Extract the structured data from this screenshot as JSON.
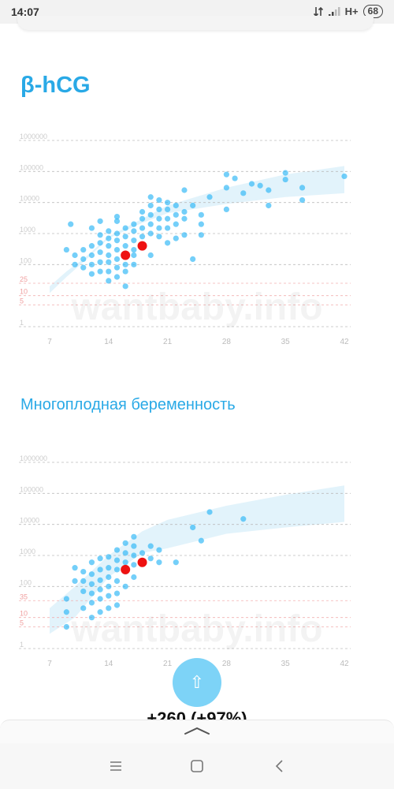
{
  "status_bar": {
    "time": "14:07",
    "network": "H+",
    "battery": "68"
  },
  "page_title": "β-hCG",
  "section_subtitle": "Многоплодная беременность",
  "watermark": "wantbaby.info",
  "scroll_top_icon": "⇧",
  "partial_text": "+260 (+97%)",
  "colors": {
    "accent": "#29a9e6",
    "point": "#29b6f6",
    "highlight": "#ee1111",
    "band": "#dff2fb",
    "grid": "#bdbdbd",
    "grid_red": "#f2b0b0"
  },
  "chart_data": [
    {
      "type": "scatter",
      "title": "β-hCG",
      "xlim": [
        7,
        42
      ],
      "x_ticks": [
        7,
        14,
        21,
        28,
        35,
        42
      ],
      "y_scale": "log",
      "ylim": [
        1,
        1000000
      ],
      "y_ticks": [
        {
          "value": 1,
          "label": "1",
          "red": false
        },
        {
          "value": 5,
          "label": "5",
          "red": true
        },
        {
          "value": 10,
          "label": "10",
          "red": true
        },
        {
          "value": 25,
          "label": "25",
          "red": true
        },
        {
          "value": 100,
          "label": "100",
          "red": false
        },
        {
          "value": 1000,
          "label": "1000",
          "red": false
        },
        {
          "value": 10000,
          "label": "10000",
          "red": false
        },
        {
          "value": 100000,
          "label": "100000",
          "red": false
        },
        {
          "value": 1000000,
          "label": "1000000",
          "red": false
        }
      ],
      "band": [
        [
          7,
          20,
          12
        ],
        [
          9,
          60,
          40
        ],
        [
          11,
          150,
          120
        ],
        [
          14,
          800,
          700
        ],
        [
          18,
          3000,
          2200
        ],
        [
          21,
          8000,
          4500
        ],
        [
          28,
          30000,
          9000
        ],
        [
          35,
          80000,
          15000
        ],
        [
          42,
          150000,
          20000
        ]
      ],
      "series": [
        {
          "points": [
            [
              9,
              300
            ],
            [
              9.5,
              2000
            ],
            [
              10,
              100
            ],
            [
              10,
              200
            ],
            [
              11,
              80
            ],
            [
              11,
              150
            ],
            [
              11,
              300
            ],
            [
              12,
              50
            ],
            [
              12,
              100
            ],
            [
              12,
              200
            ],
            [
              12,
              400
            ],
            [
              12,
              1500
            ],
            [
              13,
              60
            ],
            [
              13,
              120
            ],
            [
              13,
              250
            ],
            [
              13,
              500
            ],
            [
              13,
              900
            ],
            [
              13,
              2500
            ],
            [
              14,
              30
            ],
            [
              14,
              60
            ],
            [
              14,
              120
            ],
            [
              14,
              200
            ],
            [
              14,
              400
            ],
            [
              14,
              700
            ],
            [
              14,
              1200
            ],
            [
              15,
              40
            ],
            [
              15,
              80
            ],
            [
              15,
              150
            ],
            [
              15,
              300
            ],
            [
              15,
              600
            ],
            [
              15,
              1000
            ],
            [
              15,
              2500
            ],
            [
              15,
              3500
            ],
            [
              16,
              20
            ],
            [
              16,
              60
            ],
            [
              16,
              100
            ],
            [
              16,
              200
            ],
            [
              16,
              400
            ],
            [
              16,
              800
            ],
            [
              16,
              1500
            ],
            [
              17,
              100
            ],
            [
              17,
              200
            ],
            [
              17,
              300
            ],
            [
              17,
              600
            ],
            [
              17,
              1200
            ],
            [
              17,
              2000
            ],
            [
              18,
              400
            ],
            [
              18,
              800
            ],
            [
              18,
              1500
            ],
            [
              18,
              3000
            ],
            [
              18,
              5000
            ],
            [
              19,
              200
            ],
            [
              19,
              1000
            ],
            [
              19,
              2000
            ],
            [
              19,
              4000
            ],
            [
              19,
              8000
            ],
            [
              19,
              15000
            ],
            [
              20,
              800
            ],
            [
              20,
              1500
            ],
            [
              20,
              3000
            ],
            [
              20,
              6000
            ],
            [
              20,
              12000
            ],
            [
              21,
              500
            ],
            [
              21,
              1500
            ],
            [
              21,
              3000
            ],
            [
              21,
              6000
            ],
            [
              21,
              10000
            ],
            [
              22,
              700
            ],
            [
              22,
              2000
            ],
            [
              22,
              4000
            ],
            [
              22,
              8000
            ],
            [
              23,
              900
            ],
            [
              23,
              3000
            ],
            [
              23,
              5000
            ],
            [
              23,
              25000
            ],
            [
              24,
              8000
            ],
            [
              25,
              900
            ],
            [
              25,
              2000
            ],
            [
              25,
              4000
            ],
            [
              26,
              15000
            ],
            [
              28,
              30000
            ],
            [
              28,
              6000
            ],
            [
              28,
              80000
            ],
            [
              29,
              60000
            ],
            [
              30,
              20000
            ],
            [
              31,
              40000
            ],
            [
              32,
              35000
            ],
            [
              33,
              8000
            ],
            [
              33,
              25000
            ],
            [
              35,
              90000
            ],
            [
              35,
              55000
            ],
            [
              37,
              30000
            ],
            [
              37,
              12000
            ],
            [
              42,
              70000
            ],
            [
              24,
              150
            ]
          ]
        },
        {
          "name": "highlight",
          "points": [
            [
              16,
              200
            ],
            [
              18,
              400
            ]
          ]
        }
      ]
    },
    {
      "type": "scatter",
      "title": "Многоплодная беременность",
      "xlim": [
        7,
        42
      ],
      "x_ticks": [
        7,
        14,
        21,
        28,
        35,
        42
      ],
      "y_scale": "log",
      "ylim": [
        1,
        1000000
      ],
      "y_ticks": [
        {
          "value": 1,
          "label": "1",
          "red": false
        },
        {
          "value": 5,
          "label": "5",
          "red": true
        },
        {
          "value": 10,
          "label": "10",
          "red": true
        },
        {
          "value": 35,
          "label": "35",
          "red": true
        },
        {
          "value": 100,
          "label": "100",
          "red": false
        },
        {
          "value": 1000,
          "label": "1000",
          "red": false
        },
        {
          "value": 10000,
          "label": "10000",
          "red": false
        },
        {
          "value": 100000,
          "label": "100000",
          "red": false
        },
        {
          "value": 1000000,
          "label": "1000000",
          "red": false
        }
      ],
      "band": [
        [
          7,
          20,
          3
        ],
        [
          10,
          100,
          10
        ],
        [
          14,
          1000,
          200
        ],
        [
          18,
          6000,
          1200
        ],
        [
          21,
          14000,
          1700
        ],
        [
          28,
          40000,
          5000
        ],
        [
          35,
          90000,
          8000
        ],
        [
          42,
          180000,
          12000
        ]
      ],
      "series": [
        {
          "points": [
            [
              9,
              5
            ],
            [
              9,
              15
            ],
            [
              9,
              40
            ],
            [
              10,
              150
            ],
            [
              10,
              400
            ],
            [
              11,
              20
            ],
            [
              11,
              70
            ],
            [
              11,
              150
            ],
            [
              11,
              300
            ],
            [
              12,
              10
            ],
            [
              12,
              30
            ],
            [
              12,
              60
            ],
            [
              12,
              120
            ],
            [
              12,
              250
            ],
            [
              12,
              600
            ],
            [
              13,
              15
            ],
            [
              13,
              40
            ],
            [
              13,
              80
            ],
            [
              13,
              160
            ],
            [
              13,
              350
            ],
            [
              13,
              800
            ],
            [
              14,
              20
            ],
            [
              14,
              50
            ],
            [
              14,
              100
            ],
            [
              14,
              200
            ],
            [
              14,
              400
            ],
            [
              14,
              900
            ],
            [
              15,
              25
            ],
            [
              15,
              60
            ],
            [
              15,
              150
            ],
            [
              15,
              350
            ],
            [
              15,
              700
            ],
            [
              15,
              1500
            ],
            [
              16,
              100
            ],
            [
              16,
              300
            ],
            [
              16,
              600
            ],
            [
              16,
              1200
            ],
            [
              16,
              2500
            ],
            [
              17,
              200
            ],
            [
              17,
              500
            ],
            [
              17,
              1000
            ],
            [
              17,
              2000
            ],
            [
              17,
              4000
            ],
            [
              18,
              600
            ],
            [
              18,
              1200
            ],
            [
              19,
              800
            ],
            [
              19,
              2000
            ],
            [
              20,
              600
            ],
            [
              20,
              1500
            ],
            [
              22,
              600
            ],
            [
              24,
              8000
            ],
            [
              25,
              3000
            ],
            [
              26,
              25000
            ],
            [
              30,
              15000
            ]
          ]
        },
        {
          "name": "highlight",
          "points": [
            [
              16,
              350
            ],
            [
              18,
              600
            ]
          ]
        }
      ]
    }
  ]
}
